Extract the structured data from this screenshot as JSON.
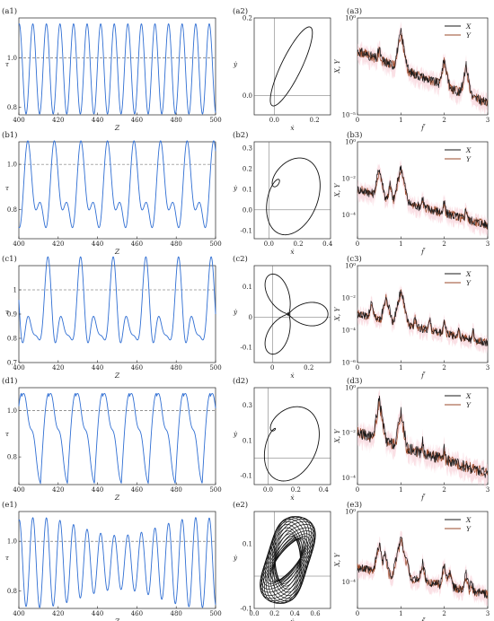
{
  "rows": [
    {
      "time": {
        "label": "(a1)",
        "ylabel": "τ",
        "xlabel": "Z",
        "xlim": [
          400,
          500
        ],
        "ylim": [
          0.77,
          1.16
        ],
        "yticks": [
          {
            "v": 1.0,
            "t": "1.0"
          },
          {
            "v": 0.8,
            "t": "0.8"
          }
        ],
        "xticks": [
          400,
          420,
          440,
          460,
          480,
          500
        ],
        "ref": 1.0,
        "periods": [
          6.9
        ],
        "shape": "sine"
      },
      "phase": {
        "label": "(a2)",
        "ylabel": "ẏ",
        "xlabel": "ẋ",
        "xlim": [
          -0.1,
          0.28
        ],
        "ylim": [
          -0.05,
          0.2
        ],
        "xticks": [
          {
            "v": 0.0,
            "t": "0.0"
          },
          {
            "v": 0.2,
            "t": "0.2"
          }
        ],
        "yticks": [
          {
            "v": 0.2,
            "t": "0.2"
          },
          {
            "v": 0.0,
            "t": "0.0"
          }
        ],
        "cross": [
          0.0,
          0.0
        ],
        "kind": "ellipse"
      },
      "spectrum": {
        "label": "(a3)",
        "ylabel": "X, Y",
        "xlabel": "f̃",
        "xlim": [
          0,
          3
        ],
        "logmin": -5,
        "logmax": 0,
        "yticks": [
          {
            "e": 0,
            "t": "10⁰"
          },
          {
            "e": -5,
            "t": "10⁻⁵"
          }
        ],
        "xticks": [
          0,
          1,
          2,
          3
        ],
        "peaks": [
          {
            "f": 0.5,
            "a": -1.5
          },
          {
            "f": 1.0,
            "a": -0.7
          },
          {
            "f": 2.0,
            "a": -2.1
          },
          {
            "f": 2.5,
            "a": -2.4
          }
        ],
        "base": -1.7,
        "slope": -0.9,
        "legend": [
          "X",
          "Y"
        ]
      }
    },
    {
      "time": {
        "label": "(b1)",
        "ylabel": "τ",
        "xlabel": "Z",
        "xlim": [
          400,
          500
        ],
        "ylim": [
          0.67,
          1.1
        ],
        "yticks": [
          {
            "v": 1.0,
            "t": "1.0"
          },
          {
            "v": 0.8,
            "t": "0.8"
          }
        ],
        "xticks": [
          400,
          420,
          440,
          460,
          480,
          500
        ],
        "ref": 1.0,
        "periods": [
          13.5
        ],
        "shape": "double"
      },
      "phase": {
        "label": "(b2)",
        "ylabel": "ẏ",
        "xlabel": "ẋ",
        "xlim": [
          -0.1,
          0.42
        ],
        "ylim": [
          -0.14,
          0.33
        ],
        "xticks": [
          {
            "v": 0.0,
            "t": "0.0"
          },
          {
            "v": 0.2,
            "t": "0.2"
          },
          {
            "v": 0.4,
            "t": "0.4"
          }
        ],
        "yticks": [
          {
            "v": 0.3,
            "t": "0.3"
          },
          {
            "v": 0.2,
            "t": "0.2"
          },
          {
            "v": 0.1,
            "t": "0.1"
          },
          {
            "v": 0.0,
            "t": "0.0"
          },
          {
            "v": -0.1,
            "t": "-0.1"
          }
        ],
        "cross": [
          0.0,
          0.0
        ],
        "kind": "loop2"
      },
      "spectrum": {
        "label": "(b3)",
        "ylabel": "X, Y",
        "xlabel": "f̃",
        "xlim": [
          0,
          3
        ],
        "logmin": -5.3,
        "logmax": 0,
        "yticks": [
          {
            "e": 0,
            "t": "10⁰"
          },
          {
            "e": -2,
            "t": "10⁻²"
          },
          {
            "e": -4,
            "t": "10⁻⁴"
          }
        ],
        "xticks": [
          0,
          1,
          2,
          3
        ],
        "peaks": [
          {
            "f": 0.25,
            "a": -2.6
          },
          {
            "f": 0.5,
            "a": -1.4
          },
          {
            "f": 0.75,
            "a": -2.3
          },
          {
            "f": 1.0,
            "a": -1.3
          },
          {
            "f": 1.5,
            "a": -3.0
          },
          {
            "f": 2.0,
            "a": -3.3
          },
          {
            "f": 2.5,
            "a": -3.6
          }
        ],
        "base": -2.6,
        "slope": -0.65,
        "legend": [
          "X",
          "Y"
        ]
      }
    },
    {
      "time": {
        "label": "(c1)",
        "ylabel": "τ",
        "xlabel": "Z",
        "xlim": [
          400,
          500
        ],
        "ylim": [
          0.7,
          1.1
        ],
        "yticks": [
          {
            "v": 1.0,
            "t": "1"
          },
          {
            "v": 0.9,
            "t": "0.9"
          },
          {
            "v": 0.8,
            "t": "0.8"
          },
          {
            "v": 0.7,
            "t": "0.7"
          }
        ],
        "xticks": [
          400,
          420,
          440,
          460,
          480,
          500
        ],
        "ref": 1.0,
        "periods": [
          16.6
        ],
        "shape": "triple"
      },
      "phase": {
        "label": "(c2)",
        "ylabel": "ẏ",
        "xlabel": "ẋ",
        "xlim": [
          -0.1,
          0.32
        ],
        "ylim": [
          -0.15,
          0.17
        ],
        "xticks": [
          {
            "v": 0.0,
            "t": "0"
          },
          {
            "v": 0.2,
            "t": "0.2"
          }
        ],
        "yticks": [
          {
            "v": 0.1,
            "t": "0.1"
          },
          {
            "v": 0.0,
            "t": "0"
          },
          {
            "v": -0.1,
            "t": "-0.1"
          }
        ],
        "cross": [
          0.0,
          0.0
        ],
        "kind": "loop3"
      },
      "spectrum": {
        "label": "(c3)",
        "ylabel": "X, Y",
        "xlabel": "f̃",
        "xlim": [
          0,
          3
        ],
        "logmin": -6,
        "logmax": 0,
        "yticks": [
          {
            "e": 0,
            "t": "10⁰"
          },
          {
            "e": -2,
            "t": "10⁻²"
          },
          {
            "e": -4,
            "t": "10⁻⁴"
          },
          {
            "e": -6,
            "t": "10⁻⁶"
          }
        ],
        "xticks": [
          0,
          1,
          2,
          3
        ],
        "peaks": [
          {
            "f": 0.33,
            "a": -2.2
          },
          {
            "f": 0.66,
            "a": -1.8
          },
          {
            "f": 1.0,
            "a": -1.5
          },
          {
            "f": 1.33,
            "a": -3.1
          },
          {
            "f": 1.66,
            "a": -3.3
          },
          {
            "f": 2.0,
            "a": -3.4
          },
          {
            "f": 2.33,
            "a": -3.8
          },
          {
            "f": 2.66,
            "a": -4.0
          }
        ],
        "base": -3.0,
        "slope": -0.6,
        "legend": [
          "X",
          "Y"
        ]
      }
    },
    {
      "time": {
        "label": "(d1)",
        "ylabel": "τ",
        "xlabel": "Z",
        "xlim": [
          400,
          500
        ],
        "ylim": [
          0.68,
          1.1
        ],
        "yticks": [
          {
            "v": 1.0,
            "t": "1.0"
          },
          {
            "v": 0.8,
            "t": "0.8"
          }
        ],
        "xticks": [
          400,
          420,
          440,
          460,
          480,
          500
        ],
        "ref": 1.0,
        "periods": [
          13.7
        ],
        "shape": "asym"
      },
      "phase": {
        "label": "(d2)",
        "ylabel": "ẏ",
        "xlabel": "ẋ",
        "xlim": [
          -0.1,
          0.45
        ],
        "ylim": [
          -0.15,
          0.4
        ],
        "xticks": [
          {
            "v": 0.0,
            "t": "0.0"
          },
          {
            "v": 0.2,
            "t": "0.2"
          },
          {
            "v": 0.4,
            "t": "0.4"
          }
        ],
        "yticks": [
          {
            "v": 0.3,
            "t": "0.3"
          },
          {
            "v": 0.1,
            "t": "0.1"
          },
          {
            "v": -0.1,
            "t": "-0.1"
          }
        ],
        "cross": [
          0.0,
          0.0
        ],
        "kind": "loop2b"
      },
      "spectrum": {
        "label": "(d3)",
        "ylabel": "X, Y",
        "xlabel": "f̃",
        "xlim": [
          0,
          3
        ],
        "logmin": -4.3,
        "logmax": 0,
        "yticks": [
          {
            "e": 0,
            "t": "10⁰"
          },
          {
            "e": -2,
            "t": "10⁻²"
          },
          {
            "e": -4,
            "t": "10⁻⁴"
          }
        ],
        "xticks": [
          0,
          1,
          2,
          3
        ],
        "peaks": [
          {
            "f": 0.5,
            "a": -0.5
          },
          {
            "f": 1.0,
            "a": -1.0
          },
          {
            "f": 1.5,
            "a": -2.4
          },
          {
            "f": 2.0,
            "a": -2.7
          }
        ],
        "base": -2.0,
        "slope": -0.6,
        "legend": [
          "X",
          "Y"
        ]
      }
    },
    {
      "time": {
        "label": "(e1)",
        "ylabel": "τ",
        "xlabel": "Z",
        "xlim": [
          400,
          500
        ],
        "ylim": [
          0.73,
          1.12
        ],
        "yticks": [
          {
            "v": 1.0,
            "t": "1.0"
          },
          {
            "v": 0.8,
            "t": "0.8"
          }
        ],
        "xticks": [
          400,
          420,
          440,
          460,
          480,
          500
        ],
        "ref": 1.0,
        "periods": [
          6.9,
          82
        ],
        "shape": "modulated"
      },
      "phase": {
        "label": "(e2)",
        "ylabel": "ẏ",
        "xlabel": "ẋ",
        "xlim": [
          0.0,
          0.75
        ],
        "ylim": [
          -0.1,
          0.2
        ],
        "xticks": [
          {
            "v": 0.0,
            "t": "0.0"
          },
          {
            "v": 0.2,
            "t": "0.2"
          },
          {
            "v": 0.4,
            "t": "0.4"
          },
          {
            "v": 0.6,
            "t": "0.6"
          }
        ],
        "yticks": [
          {
            "v": 0.1,
            "t": "0.1"
          },
          {
            "v": -0.1,
            "t": "-0.1"
          }
        ],
        "cross": [
          0.2,
          0.0
        ],
        "kind": "torus"
      },
      "spectrum": {
        "label": "(e3)",
        "ylabel": "X, Y",
        "xlabel": "f̃",
        "xlim": [
          0,
          3
        ],
        "logmin": -5.5,
        "logmax": 0,
        "yticks": [
          {
            "e": 0,
            "t": "10⁰"
          },
          {
            "e": -4,
            "t": "10⁻⁴"
          }
        ],
        "xticks": [
          0,
          1,
          2,
          3
        ],
        "peaks": [
          {
            "f": 0.5,
            "a": -1.8
          },
          {
            "f": 0.63,
            "a": -2.3
          },
          {
            "f": 1.0,
            "a": -1.4
          },
          {
            "f": 1.13,
            "a": -2.6
          },
          {
            "f": 1.5,
            "a": -2.9
          },
          {
            "f": 2.0,
            "a": -3.0
          },
          {
            "f": 2.13,
            "a": -3.3
          },
          {
            "f": 2.5,
            "a": -3.5
          },
          {
            "f": 2.63,
            "a": -3.9
          }
        ],
        "base": -3.2,
        "slope": -0.5,
        "legend": [
          "X",
          "Y"
        ]
      }
    }
  ],
  "colors": {
    "time_line": "#2f6ed3",
    "ref_line": "#555555",
    "phase_line": "#111111",
    "spec_x": "#1a1a1a",
    "spec_y": "#9a4a2a",
    "spec_band": "#f6c6cf"
  },
  "chart_data": [
    {
      "type": "line",
      "panel": "(a1)",
      "xlabel": "Z",
      "ylabel": "τ",
      "xlim": [
        400,
        500
      ],
      "ylim": [
        0.77,
        1.16
      ]
    },
    {
      "type": "line",
      "panel": "(a2)",
      "xlabel": "ẋ",
      "ylabel": "ẏ"
    },
    {
      "type": "line",
      "panel": "(a3)",
      "xlabel": "f̃",
      "ylabel": "X, Y",
      "series": [
        {
          "name": "X"
        },
        {
          "name": "Y"
        }
      ]
    },
    {
      "type": "line",
      "panel": "(b1)",
      "xlabel": "Z",
      "ylabel": "τ",
      "xlim": [
        400,
        500
      ]
    },
    {
      "type": "line",
      "panel": "(b2)",
      "xlabel": "ẋ",
      "ylabel": "ẏ"
    },
    {
      "type": "line",
      "panel": "(b3)",
      "xlabel": "f̃",
      "ylabel": "X, Y",
      "series": [
        {
          "name": "X"
        },
        {
          "name": "Y"
        }
      ]
    },
    {
      "type": "line",
      "panel": "(c1)",
      "xlabel": "Z",
      "ylabel": "τ",
      "xlim": [
        400,
        500
      ]
    },
    {
      "type": "line",
      "panel": "(c2)",
      "xlabel": "ẋ",
      "ylabel": "ẏ"
    },
    {
      "type": "line",
      "panel": "(c3)",
      "xlabel": "f̃",
      "ylabel": "X, Y",
      "series": [
        {
          "name": "X"
        },
        {
          "name": "Y"
        }
      ]
    },
    {
      "type": "line",
      "panel": "(d1)",
      "xlabel": "Z",
      "ylabel": "τ",
      "xlim": [
        400,
        500
      ]
    },
    {
      "type": "line",
      "panel": "(d2)",
      "xlabel": "ẋ",
      "ylabel": "ẏ"
    },
    {
      "type": "line",
      "panel": "(d3)",
      "xlabel": "f̃",
      "ylabel": "X, Y",
      "series": [
        {
          "name": "X"
        },
        {
          "name": "Y"
        }
      ]
    },
    {
      "type": "line",
      "panel": "(e1)",
      "xlabel": "Z",
      "ylabel": "τ",
      "xlim": [
        400,
        500
      ]
    },
    {
      "type": "line",
      "panel": "(e2)",
      "xlabel": "ẋ",
      "ylabel": "ẏ"
    },
    {
      "type": "line",
      "panel": "(e3)",
      "xlabel": "f̃",
      "ylabel": "X, Y",
      "series": [
        {
          "name": "X"
        },
        {
          "name": "Y"
        }
      ]
    }
  ]
}
